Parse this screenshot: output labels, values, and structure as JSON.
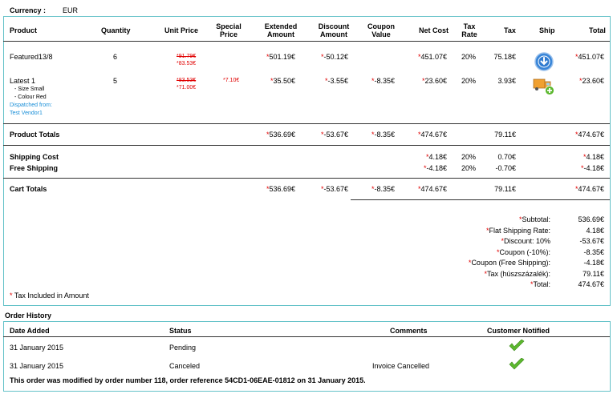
{
  "currency": {
    "label": "Currency :",
    "value": "EUR"
  },
  "headers": {
    "product": "Product",
    "quantity": "Quantity",
    "unit_price": "Unit Price",
    "special_price": [
      "Special",
      "Price"
    ],
    "extended_amount": [
      "Extended",
      "Amount"
    ],
    "discount_amount": [
      "Discount",
      "Amount"
    ],
    "coupon_value": [
      "Coupon",
      "Value"
    ],
    "net_cost": "Net Cost",
    "tax_rate": [
      "Tax",
      "Rate"
    ],
    "tax": "Tax",
    "ship": "Ship",
    "total": "Total"
  },
  "items": [
    {
      "product": "Featured13/8",
      "quantity": "6",
      "unit_price_old": "*91.79€",
      "unit_price_new": "*83.53€",
      "special_price": "",
      "extended": "501.19€",
      "discount": "-50.12€",
      "coupon": "",
      "net_cost": "451.07€",
      "tax_rate": "20%",
      "tax": "75.18€",
      "ship_icon": "download-arrow-icon",
      "total": "451.07€"
    },
    {
      "product": "Latest 1",
      "options": [
        "- Size Small",
        "- Colour Red"
      ],
      "dispatched_label": "Dispatched from:",
      "vendor": "Test Vendor1",
      "quantity": "5",
      "unit_price_old": "*83.53€",
      "unit_price_new": "*71.00€",
      "special_price": "*7.10€",
      "extended": "35.50€",
      "discount": "-3.55€",
      "coupon": "-8.35€",
      "net_cost": "23.60€",
      "tax_rate": "20%",
      "tax": "3.93€",
      "ship_icon": "shipping-truck-add-icon",
      "total": "23.60€"
    }
  ],
  "product_totals": {
    "label": "Product Totals",
    "extended": "536.69€",
    "discount": "-53.67€",
    "coupon": "-8.35€",
    "net_cost": "474.67€",
    "tax": "79.11€",
    "total": "474.67€"
  },
  "shipping": [
    {
      "label": "Shipping Cost",
      "net_cost": "4.18€",
      "tax_rate": "20%",
      "tax": "0.70€",
      "total": "4.18€"
    },
    {
      "label": "Free Shipping",
      "net_cost": "-4.18€",
      "tax_rate": "20%",
      "tax": "-0.70€",
      "total": "-4.18€"
    }
  ],
  "cart_totals": {
    "label": "Cart Totals",
    "extended": "536.69€",
    "discount": "-53.67€",
    "coupon": "-8.35€",
    "net_cost": "474.67€",
    "tax": "79.11€",
    "total": "474.67€"
  },
  "summary": [
    {
      "label": "Subtotal:",
      "value": "536.69€"
    },
    {
      "label": "Flat Shipping Rate:",
      "value": "4.18€"
    },
    {
      "label": "Discount: 10%",
      "value": "-53.67€"
    },
    {
      "label": "Coupon (-10%):",
      "value": "-8.35€"
    },
    {
      "label": "Coupon (Free Shipping):",
      "value": "-4.18€"
    },
    {
      "label": "Tax (húszszázalék):",
      "value": "79.11€"
    },
    {
      "label": "Total:",
      "value": "474.67€"
    }
  ],
  "tax_note": "Tax Included in Amount",
  "order_history": {
    "title": "Order History",
    "headers": {
      "date": "Date Added",
      "status": "Status",
      "comments": "Comments",
      "notified": "Customer Notified"
    },
    "rows": [
      {
        "date": "31 January 2015",
        "status": "Pending",
        "comments": "",
        "notified_icon": "checkmark-icon"
      },
      {
        "date": "31 January 2015",
        "status": "Canceled",
        "comments": "Invoice Cancelled",
        "notified_icon": "checkmark-icon"
      }
    ],
    "note": "This order was modified by order number 118, order reference 54CD1-06EAE-01812 on 31 January 2015."
  },
  "colors": {
    "accent_border": "#64c2c8",
    "price_red": "#e00000",
    "link_blue": "#1a8fd8",
    "check_green": "#5cb82e"
  }
}
